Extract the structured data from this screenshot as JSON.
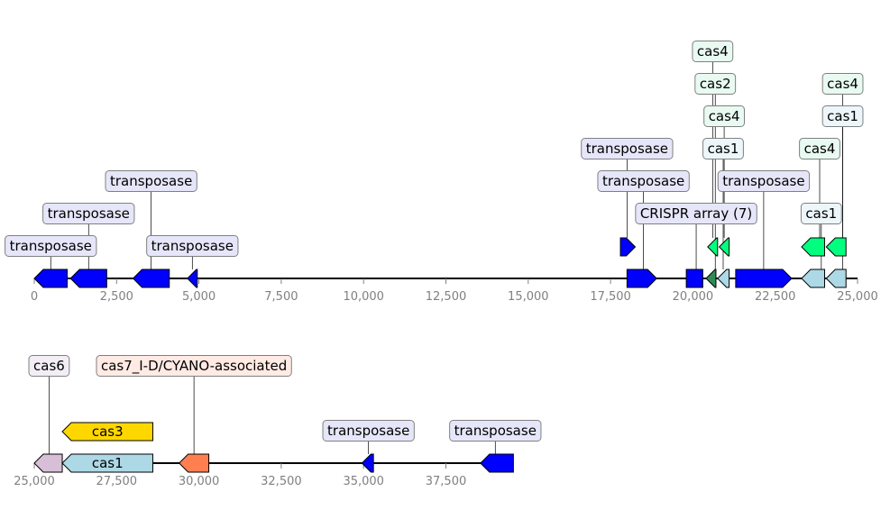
{
  "chart_data": {
    "type": "gene_map",
    "colors": {
      "transposase_box": "#e6e6fa",
      "cas_box": "#e8faf2",
      "cas6_box": "#f3eef6",
      "cas7_box": "#ffeae4",
      "cas3_box": "#fdf6d6",
      "blue": "#0000ff",
      "spring_green": "#00ff7f",
      "light_blue": "#add8e6",
      "dark_green": "#2e8b57",
      "gold": "#ffd700",
      "coral": "#ff7f50",
      "thistle": "#d8bfd8"
    },
    "tracks": [
      {
        "id": "track1",
        "range": [
          0,
          25000
        ],
        "ticks": [
          0,
          2500,
          5000,
          7500,
          10000,
          12500,
          15000,
          17500,
          20000,
          22500,
          25000
        ],
        "tick_labels": [
          "0",
          "2,500",
          "5,000",
          "7,500",
          "10,000",
          "12,500",
          "15,000",
          "17,500",
          "20,000",
          "22,500",
          "25,000"
        ],
        "features": [
          {
            "start": 0,
            "end": 1000,
            "strand": -1,
            "color": "#0000ff",
            "row": 0
          },
          {
            "start": 1100,
            "end": 2200,
            "strand": -1,
            "color": "#0000ff",
            "row": 0
          },
          {
            "start": 3000,
            "end": 4100,
            "strand": -1,
            "color": "#0000ff",
            "row": 0
          },
          {
            "start": 4650,
            "end": 4950,
            "strand": -1,
            "color": "#0000ff",
            "row": 0
          },
          {
            "start": 17800,
            "end": 18250,
            "strand": 1,
            "color": "#0000ff",
            "row": 1
          },
          {
            "start": 18000,
            "end": 18900,
            "strand": 1,
            "color": "#0000ff",
            "row": 0
          },
          {
            "start": 19800,
            "end": 20300,
            "strand": 0,
            "color": "#0000ff",
            "row": 0
          },
          {
            "start": 20400,
            "end": 20700,
            "strand": -1,
            "color": "#2e8b57",
            "row": 0
          },
          {
            "start": 20450,
            "end": 20750,
            "strand": -1,
            "color": "#00ff7f",
            "row": 1
          },
          {
            "start": 20750,
            "end": 21100,
            "strand": -1,
            "color": "#add8e6",
            "row": 0
          },
          {
            "start": 20800,
            "end": 21100,
            "strand": -1,
            "color": "#00ff7f",
            "row": 1
          },
          {
            "start": 21300,
            "end": 23000,
            "strand": 1,
            "color": "#0000ff",
            "row": 0
          },
          {
            "start": 23300,
            "end": 24000,
            "strand": -1,
            "color": "#add8e6",
            "row": 0
          },
          {
            "start": 23300,
            "end": 24000,
            "strand": -1,
            "color": "#00ff7f",
            "row": 1
          },
          {
            "start": 24050,
            "end": 24650,
            "strand": -1,
            "color": "#add8e6",
            "row": 0
          },
          {
            "start": 24050,
            "end": 24650,
            "strand": -1,
            "color": "#00ff7f",
            "row": 1
          }
        ],
        "labels": [
          {
            "text": "transposase",
            "anchor": 500,
            "level": 0,
            "box": "#e6e6fa",
            "attach_row": 0
          },
          {
            "text": "transposase",
            "anchor": 1650,
            "level": 1,
            "box": "#e6e6fa",
            "attach_row": 0
          },
          {
            "text": "transposase",
            "anchor": 3550,
            "level": 2,
            "box": "#e6e6fa",
            "attach_row": 0
          },
          {
            "text": "transposase",
            "anchor": 4800,
            "level": 0,
            "box": "#e6e6fa",
            "attach_row": 0
          },
          {
            "text": "transposase",
            "anchor": 18000,
            "level": 3,
            "box": "#e6e6fa",
            "attach_row": 1
          },
          {
            "text": "transposase",
            "anchor": 18500,
            "level": 2,
            "box": "#e6e6fa",
            "attach_row": 0
          },
          {
            "text": "CRISPR array (7)",
            "anchor": 20100,
            "level": 1,
            "box": "#e6e6fa",
            "attach_row": 0
          },
          {
            "text": "cas4",
            "anchor": 20600,
            "level": 6,
            "box": "#e8faf2",
            "attach_row": 1
          },
          {
            "text": "cas2",
            "anchor": 20680,
            "level": 5,
            "box": "#e8faf2",
            "attach_row": 0
          },
          {
            "text": "cas4",
            "anchor": 20950,
            "level": 4,
            "box": "#e8faf2",
            "attach_row": 1
          },
          {
            "text": "cas1",
            "anchor": 20920,
            "level": 3,
            "box": "#edf6fa",
            "attach_row": 0
          },
          {
            "text": "transposase",
            "anchor": 22150,
            "level": 2,
            "box": "#e6e6fa",
            "attach_row": 0
          },
          {
            "text": "cas4",
            "anchor": 23850,
            "level": 3,
            "box": "#e8faf2",
            "attach_row": 1
          },
          {
            "text": "cas1",
            "anchor": 23900,
            "level": 1,
            "box": "#edf6fa",
            "attach_row": 0
          },
          {
            "text": "cas4",
            "anchor": 24550,
            "level": 5,
            "box": "#e8faf2",
            "attach_row": 1
          },
          {
            "text": "cas1",
            "anchor": 24550,
            "level": 4,
            "box": "#edf6fa",
            "attach_row": 0
          }
        ]
      },
      {
        "id": "track2",
        "range": [
          25000,
          39000
        ],
        "ticks": [
          25000,
          27500,
          30000,
          32500,
          35000,
          37500
        ],
        "tick_labels": [
          "25,000",
          "27,500",
          "30,000",
          "32,500",
          "35,000",
          "37,500"
        ],
        "features": [
          {
            "start": 25000,
            "end": 25850,
            "strand": -1,
            "color": "#d8bfd8",
            "row": 0
          },
          {
            "start": 25850,
            "end": 28600,
            "strand": -1,
            "color": "#add8e6",
            "row": 0,
            "inner_label": "cas1"
          },
          {
            "start": 25850,
            "end": 28600,
            "strand": -1,
            "color": "#ffd700",
            "row": 1,
            "inner_label": "cas3"
          },
          {
            "start": 29400,
            "end": 30300,
            "strand": -1,
            "color": "#ff7f50",
            "row": 0
          },
          {
            "start": 34950,
            "end": 35300,
            "strand": -1,
            "color": "#0000ff",
            "row": 0
          },
          {
            "start": 38550,
            "end": 39550,
            "strand": -1,
            "color": "#0000ff",
            "row": 0
          }
        ],
        "labels": [
          {
            "text": "cas6",
            "anchor": 25450,
            "level": 2,
            "box": "#f3eef6",
            "attach_row": 0
          },
          {
            "text": "cas7_I-D/CYANO-associated",
            "anchor": 29850,
            "level": 2,
            "box": "#ffeae4",
            "attach_row": 0
          },
          {
            "text": "transposase",
            "anchor": 35150,
            "level": 0,
            "box": "#e6e6fa",
            "attach_row": 0
          },
          {
            "text": "transposase",
            "anchor": 39000,
            "level": 0,
            "box": "#e6e6fa",
            "attach_row": 0
          }
        ]
      }
    ]
  }
}
